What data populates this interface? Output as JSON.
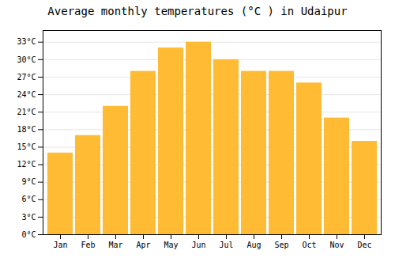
{
  "chart_data": {
    "type": "bar",
    "title": "Average monthly temperatures (°C ) in Udaipur",
    "categories": [
      "Jan",
      "Feb",
      "Mar",
      "Apr",
      "May",
      "Jun",
      "Jul",
      "Aug",
      "Sep",
      "Oct",
      "Nov",
      "Dec"
    ],
    "values": [
      14,
      17,
      22,
      28,
      32,
      33,
      30,
      28,
      28,
      26,
      20,
      16
    ],
    "color": "#FFBB33",
    "ylim": [
      0,
      35
    ],
    "yticks": [
      {
        "value": 0,
        "label": "0°C"
      },
      {
        "value": 3,
        "label": "3°C"
      },
      {
        "value": 6,
        "label": "6°C"
      },
      {
        "value": 9,
        "label": "9°C"
      },
      {
        "value": 12,
        "label": "12°C"
      },
      {
        "value": 15,
        "label": "15°C"
      },
      {
        "value": 18,
        "label": "18°C"
      },
      {
        "value": 21,
        "label": "21°C"
      },
      {
        "value": 24,
        "label": "24°C"
      },
      {
        "value": 27,
        "label": "27°C"
      },
      {
        "value": 30,
        "label": "30°C"
      },
      {
        "value": 33,
        "label": "33°C"
      }
    ],
    "grid": true
  }
}
